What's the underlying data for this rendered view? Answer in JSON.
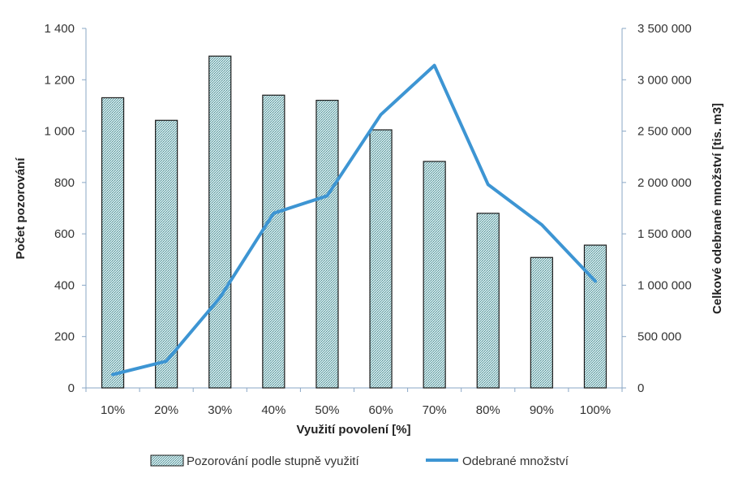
{
  "chart_data": {
    "type": "bar",
    "categories": [
      "10%",
      "20%",
      "30%",
      "40%",
      "50%",
      "60%",
      "70%",
      "80%",
      "90%",
      "100%"
    ],
    "series": [
      {
        "name": "Pozorování podle stupně využití",
        "type": "bar",
        "axis": "left",
        "values": [
          1130,
          1042,
          1292,
          1140,
          1120,
          1005,
          882,
          680,
          508,
          556
        ]
      },
      {
        "name": "Odebrané množství",
        "type": "line",
        "axis": "right",
        "values": [
          130000,
          260000,
          880000,
          1700000,
          1870000,
          2660000,
          3140000,
          1980000,
          1590000,
          1040000
        ]
      }
    ],
    "xlabel": "Využití povolení [%]",
    "ylabel": "Počet pozorování",
    "y2label": "Celkové odebrané množství [tis. m3]",
    "ylim": [
      0,
      1400
    ],
    "y2lim": [
      0,
      3500000
    ],
    "yticks": [
      "0",
      "200",
      "400",
      "600",
      "800",
      "1 000",
      "1 200",
      "1 400"
    ],
    "y2ticks": [
      "0",
      "500 000",
      "1 000 000",
      "1 500 000",
      "2 000 000",
      "2 500 000",
      "3 000 000",
      "3 500 000"
    ],
    "grid": false,
    "legend_position": "bottom",
    "colors": {
      "bar_fill": "#a9cfd3",
      "bar_stroke": "#1a1a1a",
      "line": "#3d95d3",
      "axis": "#8aa7c6"
    }
  }
}
